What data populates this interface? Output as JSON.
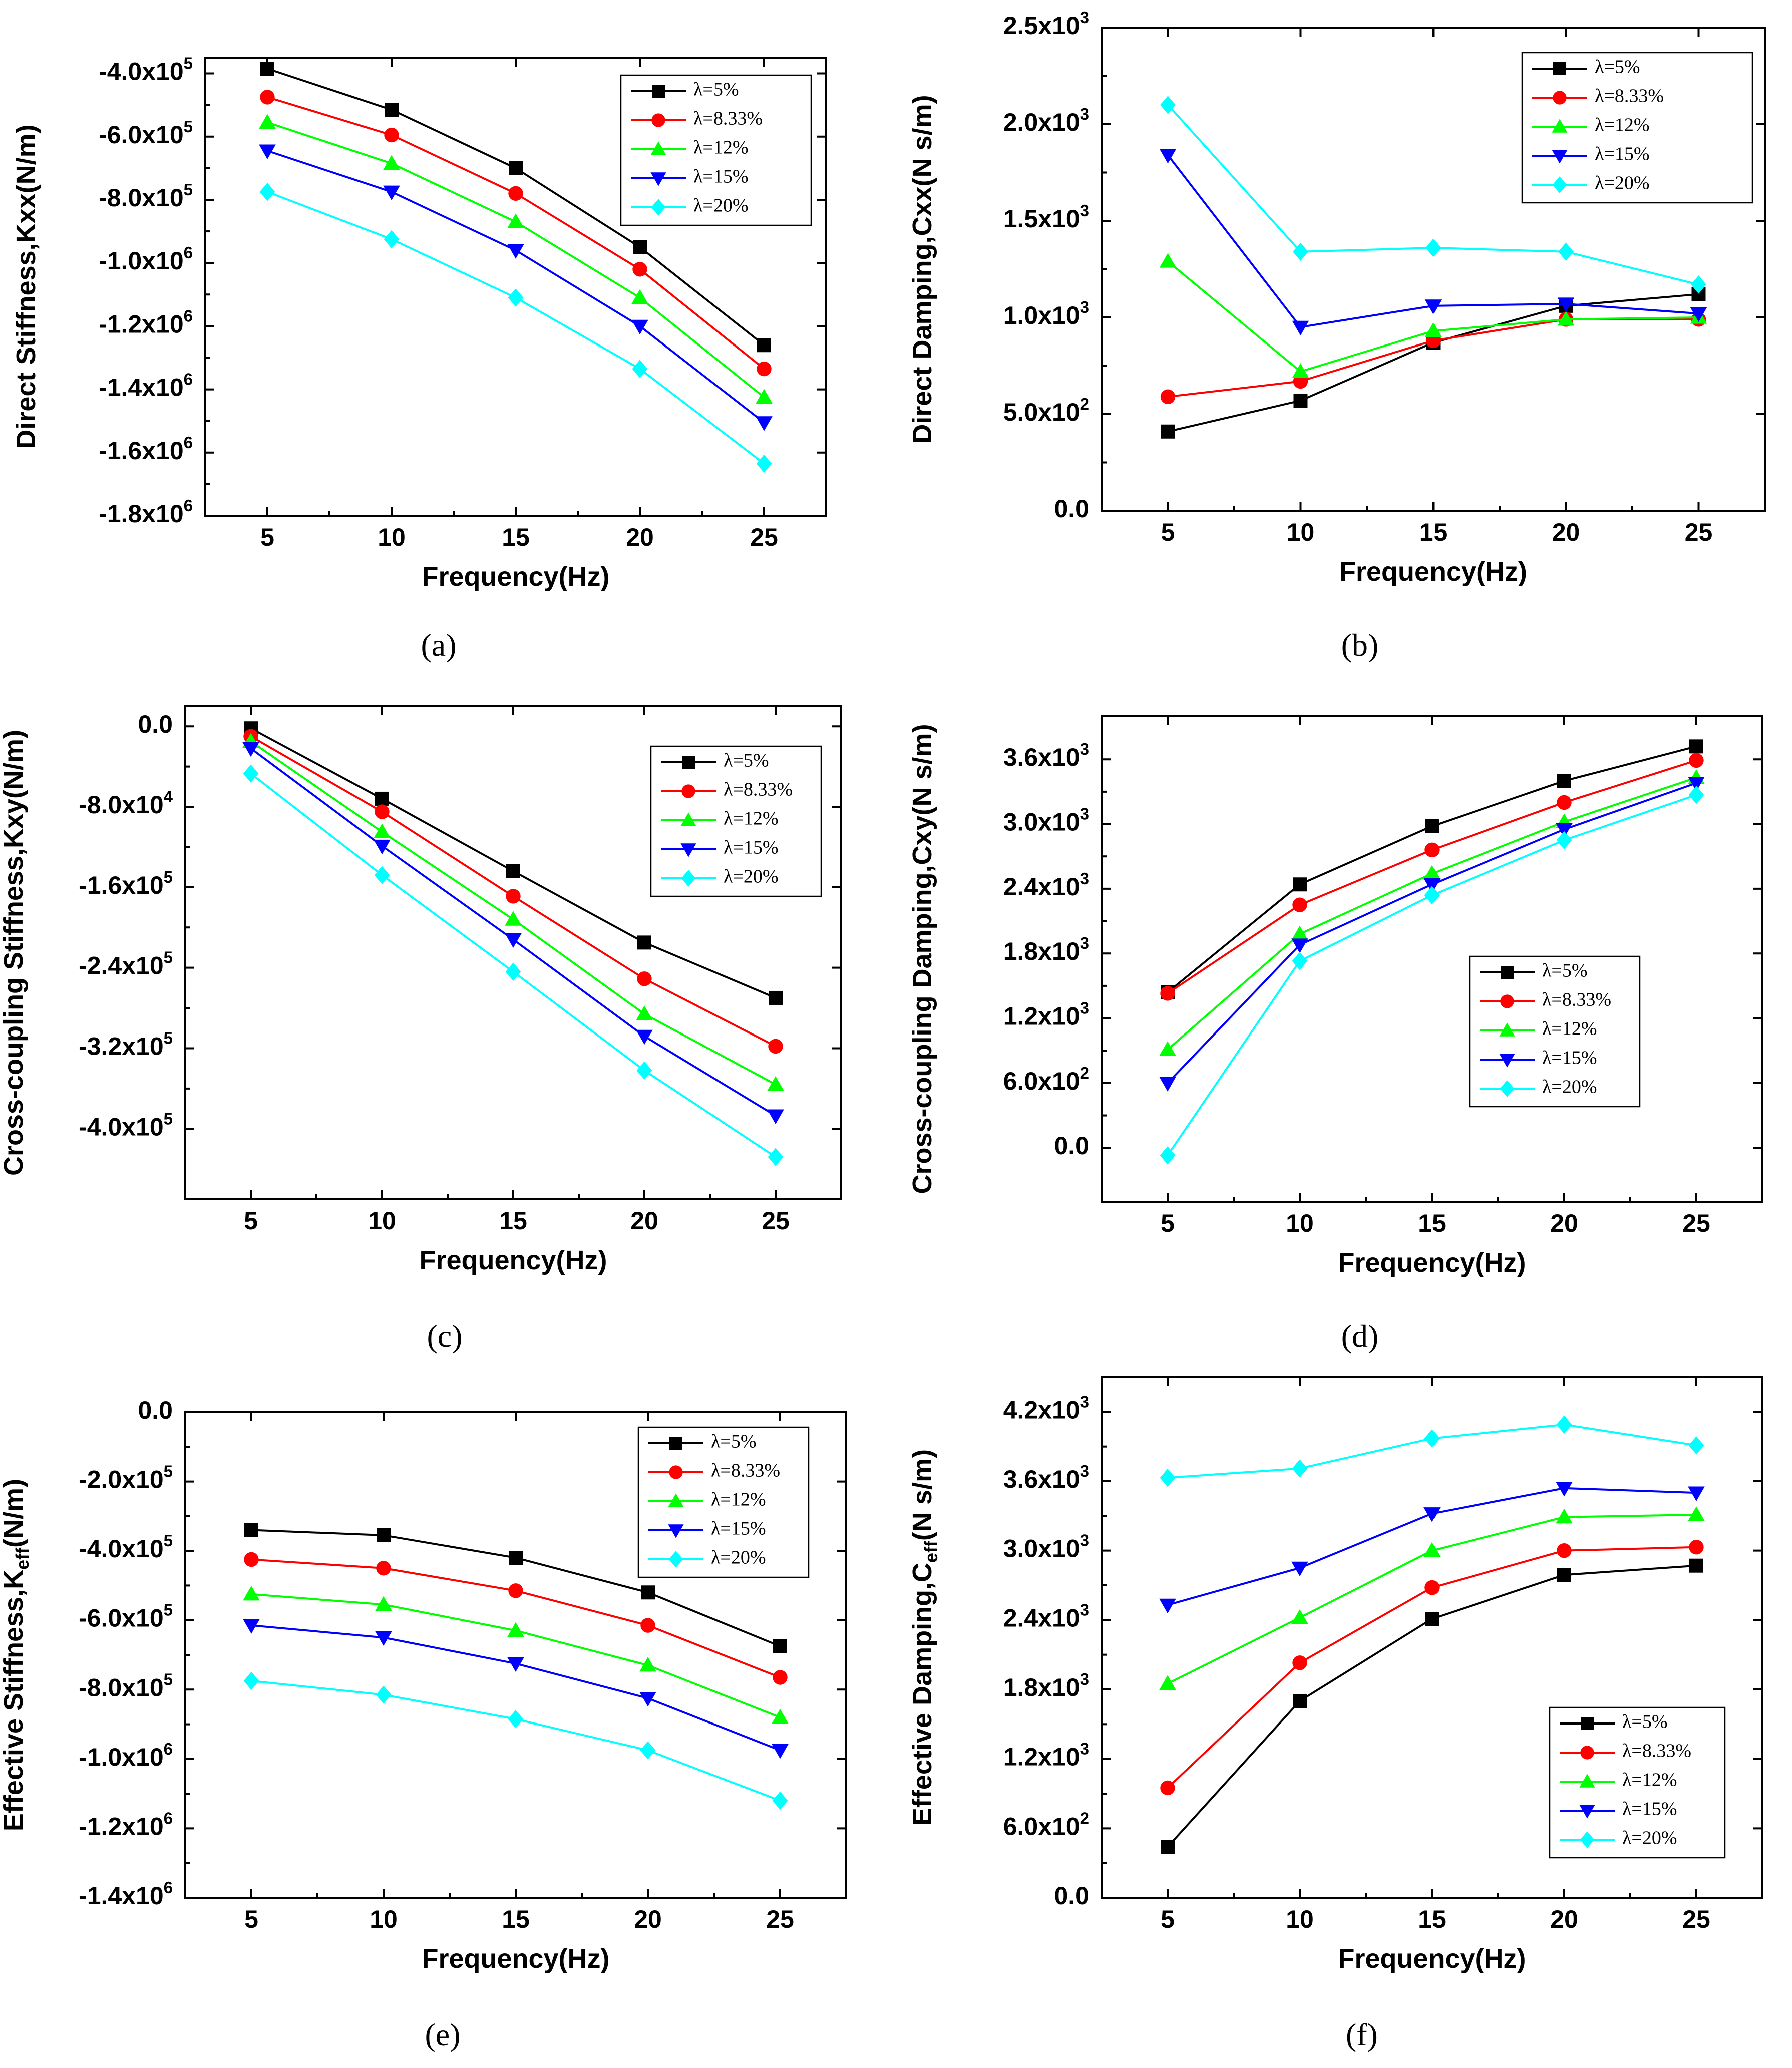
{
  "chart_data": [
    {
      "panel": "a",
      "panel_label": "(a)",
      "type": "line",
      "xlabel": "Frequency(Hz)",
      "ylabel": "Direct Stiffness,Kxx(N/m)",
      "x": [
        5,
        10,
        15,
        20,
        25
      ],
      "xticks": [
        "5",
        "10",
        "15",
        "20",
        "25"
      ],
      "xlim": [
        2.5,
        27.5
      ],
      "ylim": [
        -1800000,
        -350000
      ],
      "yticks": [
        {
          "v": -400000,
          "m": "-4.0x10",
          "e": "5"
        },
        {
          "v": -600000,
          "m": "-6.0x10",
          "e": "5"
        },
        {
          "v": -800000,
          "m": "-8.0x10",
          "e": "5"
        },
        {
          "v": -1000000,
          "m": "-1.0x10",
          "e": "6"
        },
        {
          "v": -1200000,
          "m": "-1.2x10",
          "e": "6"
        },
        {
          "v": -1400000,
          "m": "-1.4x10",
          "e": "6"
        },
        {
          "v": -1600000,
          "m": "-1.6x10",
          "e": "6"
        },
        {
          "v": -1800000,
          "m": "-1.8x10",
          "e": "6"
        }
      ],
      "legend_position": "top-right",
      "series": [
        {
          "name": "λ=5%",
          "values": [
            -385000,
            -515000,
            -700000,
            -950000,
            -1260000
          ]
        },
        {
          "name": "λ=8.33%",
          "values": [
            -475000,
            -595000,
            -780000,
            -1020000,
            -1335000
          ]
        },
        {
          "name": "λ=12%",
          "values": [
            -555000,
            -685000,
            -870000,
            -1110000,
            -1425000
          ]
        },
        {
          "name": "λ=15%",
          "values": [
            -645000,
            -775000,
            -960000,
            -1200000,
            -1505000
          ]
        },
        {
          "name": "λ=20%",
          "values": [
            -775000,
            -925000,
            -1110000,
            -1335000,
            -1635000
          ]
        }
      ]
    },
    {
      "panel": "b",
      "panel_label": "(b)",
      "type": "line",
      "xlabel": "Frequency(Hz)",
      "ylabel": "Direct Damping,Cxx(N s/m)",
      "x": [
        5,
        10,
        15,
        20,
        25
      ],
      "xticks": [
        "5",
        "10",
        "15",
        "20",
        "25"
      ],
      "xlim": [
        2.5,
        27.5
      ],
      "ylim": [
        0,
        2500
      ],
      "yticks": [
        {
          "v": 0,
          "m": "0.0",
          "e": ""
        },
        {
          "v": 500,
          "m": "5.0x10",
          "e": "2"
        },
        {
          "v": 1000,
          "m": "1.0x10",
          "e": "3"
        },
        {
          "v": 1500,
          "m": "1.5x10",
          "e": "3"
        },
        {
          "v": 2000,
          "m": "2.0x10",
          "e": "3"
        },
        {
          "v": 2500,
          "m": "2.5x10",
          "e": "3"
        }
      ],
      "legend_position": "top-right",
      "series": [
        {
          "name": "λ=5%",
          "values": [
            410,
            570,
            870,
            1060,
            1120
          ]
        },
        {
          "name": "λ=8.33%",
          "values": [
            590,
            670,
            880,
            990,
            990
          ]
        },
        {
          "name": "λ=12%",
          "values": [
            1290,
            720,
            930,
            990,
            1000
          ]
        },
        {
          "name": "λ=15%",
          "values": [
            1840,
            950,
            1060,
            1070,
            1020
          ]
        },
        {
          "name": "λ=20%",
          "values": [
            2100,
            1340,
            1360,
            1340,
            1170
          ]
        }
      ]
    },
    {
      "panel": "c",
      "panel_label": "(c)",
      "type": "line",
      "xlabel": "Frequency(Hz)",
      "ylabel": "Cross-coupling Stiffness,Kxy(N/m)",
      "x": [
        5,
        10,
        15,
        20,
        25
      ],
      "xticks": [
        "5",
        "10",
        "15",
        "20",
        "25"
      ],
      "xlim": [
        2.5,
        27.5
      ],
      "ylim": [
        -470000,
        20000
      ],
      "yticks": [
        {
          "v": 0,
          "m": "0.0",
          "e": ""
        },
        {
          "v": -80000,
          "m": "-8.0x10",
          "e": "4"
        },
        {
          "v": -160000,
          "m": "-1.6x10",
          "e": "5"
        },
        {
          "v": -240000,
          "m": "-2.4x10",
          "e": "5"
        },
        {
          "v": -320000,
          "m": "-3.2x10",
          "e": "5"
        },
        {
          "v": -400000,
          "m": "-4.0x10",
          "e": "5"
        }
      ],
      "legend_position": "top-right",
      "series": [
        {
          "name": "λ=5%",
          "values": [
            -2000,
            -72000,
            -144000,
            -215000,
            -270000
          ]
        },
        {
          "name": "λ=8.33%",
          "values": [
            -10000,
            -85000,
            -169000,
            -251000,
            -318000
          ]
        },
        {
          "name": "λ=12%",
          "values": [
            -15000,
            -105000,
            -192000,
            -286000,
            -356000
          ]
        },
        {
          "name": "λ=15%",
          "values": [
            -22000,
            -119000,
            -212000,
            -308000,
            -387000
          ]
        },
        {
          "name": "λ=20%",
          "values": [
            -47000,
            -148000,
            -244000,
            -342000,
            -428000
          ]
        }
      ]
    },
    {
      "panel": "d",
      "panel_label": "(d)",
      "type": "line",
      "xlabel": "Frequency(Hz)",
      "ylabel": "Cross-coupling Damping,Cxy(N s/m)",
      "x": [
        5,
        10,
        15,
        20,
        25
      ],
      "xticks": [
        "5",
        "10",
        "15",
        "20",
        "25"
      ],
      "xlim": [
        2.5,
        27.5
      ],
      "ylim": [
        -500,
        4000
      ],
      "yticks": [
        {
          "v": 0,
          "m": "0.0",
          "e": ""
        },
        {
          "v": 600,
          "m": "6.0x10",
          "e": "2"
        },
        {
          "v": 1200,
          "m": "1.2x10",
          "e": "3"
        },
        {
          "v": 1800,
          "m": "1.8x10",
          "e": "3"
        },
        {
          "v": 2400,
          "m": "2.4x10",
          "e": "3"
        },
        {
          "v": 3000,
          "m": "3.0x10",
          "e": "3"
        },
        {
          "v": 3600,
          "m": "3.6x10",
          "e": "3"
        }
      ],
      "legend_position": "center-right",
      "series": [
        {
          "name": "λ=5%",
          "values": [
            1440,
            2440,
            2980,
            3400,
            3720
          ]
        },
        {
          "name": "λ=8.33%",
          "values": [
            1430,
            2250,
            2760,
            3200,
            3590
          ]
        },
        {
          "name": "λ=12%",
          "values": [
            910,
            1980,
            2540,
            3020,
            3430
          ]
        },
        {
          "name": "λ=15%",
          "values": [
            600,
            1880,
            2440,
            2950,
            3380
          ]
        },
        {
          "name": "λ=20%",
          "values": [
            -70,
            1730,
            2340,
            2850,
            3270
          ]
        }
      ]
    },
    {
      "panel": "e",
      "panel_label": "(e)",
      "type": "line",
      "xlabel": "Frequency(Hz)",
      "ylabel_main": "Effective Stiffness,K",
      "ylabel_sub": "eff",
      "ylabel_tail": "(N/m)",
      "x": [
        5,
        10,
        15,
        20,
        25
      ],
      "xticks": [
        "5",
        "10",
        "15",
        "20",
        "25"
      ],
      "xlim": [
        2.5,
        27.5
      ],
      "ylim": [
        -1400000,
        0
      ],
      "yticks": [
        {
          "v": 0,
          "m": "0.0",
          "e": ""
        },
        {
          "v": -200000,
          "m": "-2.0x10",
          "e": "5"
        },
        {
          "v": -400000,
          "m": "-4.0x10",
          "e": "5"
        },
        {
          "v": -600000,
          "m": "-6.0x10",
          "e": "5"
        },
        {
          "v": -800000,
          "m": "-8.0x10",
          "e": "5"
        },
        {
          "v": -1000000,
          "m": "-1.0x10",
          "e": "6"
        },
        {
          "v": -1200000,
          "m": "-1.2x10",
          "e": "6"
        },
        {
          "v": -1400000,
          "m": "-1.4x10",
          "e": "6"
        }
      ],
      "legend_position": "top-right",
      "series": [
        {
          "name": "λ=5%",
          "values": [
            -340000,
            -355000,
            -420000,
            -520000,
            -675000
          ]
        },
        {
          "name": "λ=8.33%",
          "values": [
            -425000,
            -450000,
            -515000,
            -615000,
            -765000
          ]
        },
        {
          "name": "λ=12%",
          "values": [
            -525000,
            -555000,
            -630000,
            -730000,
            -880000
          ]
        },
        {
          "name": "λ=15%",
          "values": [
            -615000,
            -650000,
            -725000,
            -825000,
            -975000
          ]
        },
        {
          "name": "λ=20%",
          "values": [
            -775000,
            -815000,
            -885000,
            -975000,
            -1120000
          ]
        }
      ]
    },
    {
      "panel": "f",
      "panel_label": "(f)",
      "type": "line",
      "xlabel": "Frequency(Hz)",
      "ylabel_main": "Effective Damping,C",
      "ylabel_sub": "eff",
      "ylabel_tail": "(N s/m)",
      "x": [
        5,
        10,
        15,
        20,
        25
      ],
      "xticks": [
        "5",
        "10",
        "15",
        "20",
        "25"
      ],
      "xlim": [
        2.5,
        27.5
      ],
      "ylim": [
        0,
        4500
      ],
      "yticks": [
        {
          "v": 0,
          "m": "0.0",
          "e": ""
        },
        {
          "v": 600,
          "m": "6.0x10",
          "e": "2"
        },
        {
          "v": 1200,
          "m": "1.2x10",
          "e": "3"
        },
        {
          "v": 1800,
          "m": "1.8x10",
          "e": "3"
        },
        {
          "v": 2400,
          "m": "2.4x10",
          "e": "3"
        },
        {
          "v": 3000,
          "m": "3.0x10",
          "e": "3"
        },
        {
          "v": 3600,
          "m": "3.6x10",
          "e": "3"
        },
        {
          "v": 4200,
          "m": "4.2x10",
          "e": "3"
        }
      ],
      "legend_position": "bottom-right",
      "series": [
        {
          "name": "λ=5%",
          "values": [
            440,
            1700,
            2410,
            2790,
            2870
          ]
        },
        {
          "name": "λ=8.33%",
          "values": [
            950,
            2030,
            2680,
            3000,
            3030
          ]
        },
        {
          "name": "λ=12%",
          "values": [
            1850,
            2420,
            3000,
            3290,
            3310
          ]
        },
        {
          "name": "λ=15%",
          "values": [
            2530,
            2850,
            3320,
            3540,
            3500
          ]
        },
        {
          "name": "λ=20%",
          "values": [
            3630,
            3710,
            3970,
            4090,
            3910
          ]
        }
      ]
    }
  ],
  "series_styles": [
    {
      "color": "#000000",
      "marker": "square"
    },
    {
      "color": "#ff0000",
      "marker": "circle"
    },
    {
      "color": "#00ff00",
      "marker": "triangle-up"
    },
    {
      "color": "#0000ff",
      "marker": "triangle-down"
    },
    {
      "color": "#00ffff",
      "marker": "diamond"
    }
  ]
}
